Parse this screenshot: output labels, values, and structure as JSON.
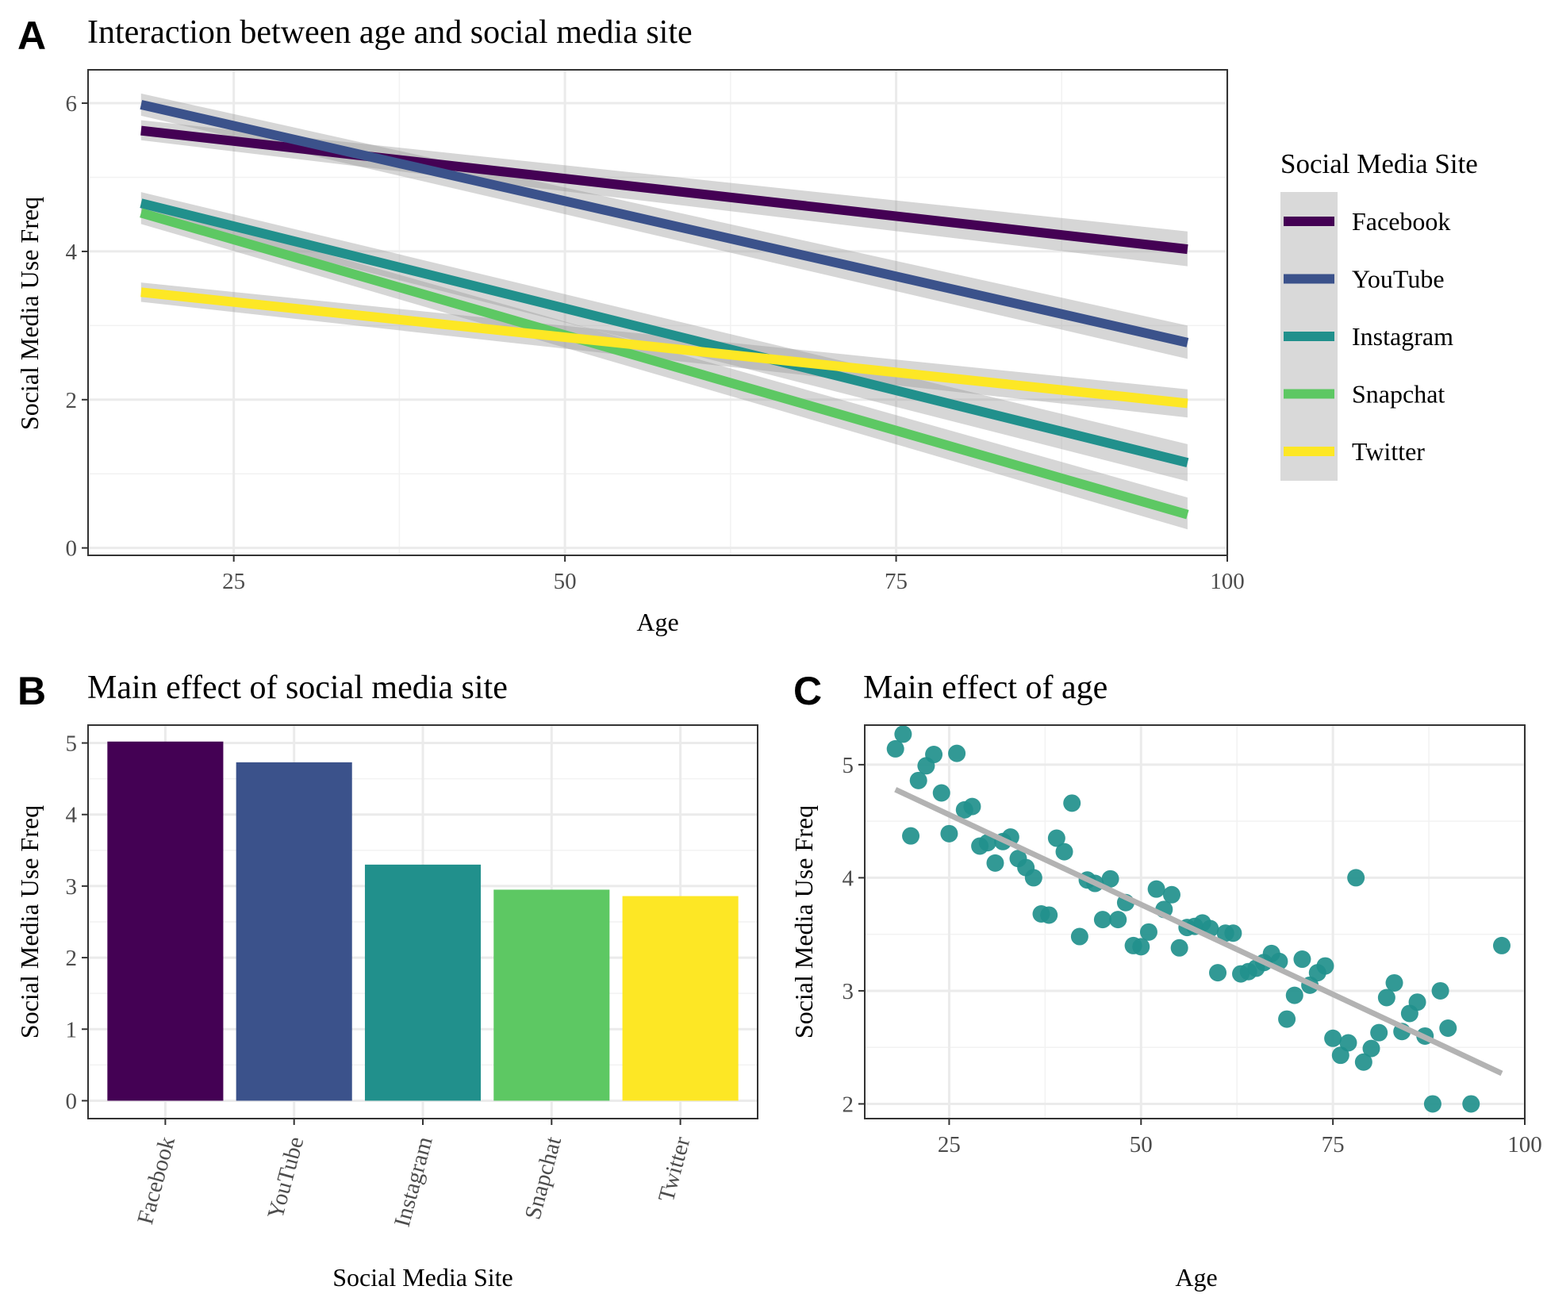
{
  "chart_data": [
    {
      "panel": "A",
      "type": "line",
      "title": "Interaction between age and social media site",
      "xlabel": "Age",
      "ylabel": "Social Media Use Freq",
      "xlim": [
        14,
        100
      ],
      "ylim": [
        -0.1,
        6.45
      ],
      "x_ticks": [
        25,
        50,
        75,
        100
      ],
      "y_ticks": [
        0,
        2,
        4,
        6
      ],
      "grid": true,
      "legend": {
        "title": "Social Media Site",
        "position": "right",
        "items": [
          "Facebook",
          "YouTube",
          "Instagram",
          "Snapchat",
          "Twitter"
        ]
      },
      "series": [
        {
          "name": "Facebook",
          "color": "#440154",
          "x": [
            18,
            97
          ],
          "y": [
            5.63,
            4.03
          ],
          "ci": [
            [
              5.5,
              5.77
            ],
            [
              3.8,
              4.27
            ]
          ]
        },
        {
          "name": "YouTube",
          "color": "#3b528b",
          "x": [
            18,
            97
          ],
          "y": [
            5.98,
            2.77
          ],
          "ci": [
            [
              5.83,
              6.13
            ],
            [
              2.55,
              3.0
            ]
          ]
        },
        {
          "name": "Instagram",
          "color": "#21908c",
          "x": [
            18,
            97
          ],
          "y": [
            4.65,
            1.15
          ],
          "ci": [
            [
              4.5,
              4.8
            ],
            [
              0.9,
              1.4
            ]
          ]
        },
        {
          "name": "Snapchat",
          "color": "#5dc863",
          "x": [
            18,
            97
          ],
          "y": [
            4.52,
            0.45
          ],
          "ci": [
            [
              4.37,
              4.67
            ],
            [
              0.25,
              0.68
            ]
          ]
        },
        {
          "name": "Twitter",
          "color": "#fde725",
          "x": [
            18,
            97
          ],
          "y": [
            3.45,
            1.95
          ],
          "ci": [
            [
              3.32,
              3.58
            ],
            [
              1.76,
              2.14
            ]
          ]
        }
      ]
    },
    {
      "panel": "B",
      "type": "bar",
      "title": "Main effect of social media site",
      "xlabel": "Social Media Site",
      "ylabel": "Social Media Use Freq",
      "ylim": [
        -0.25,
        5.25
      ],
      "y_ticks": [
        0,
        1,
        2,
        3,
        4,
        5
      ],
      "grid": true,
      "categories": [
        "Facebook",
        "YouTube",
        "Instagram",
        "Snapchat",
        "Twitter"
      ],
      "values": [
        5.02,
        4.73,
        3.3,
        2.95,
        2.86
      ],
      "colors": [
        "#440154",
        "#3b528b",
        "#21908c",
        "#5dc863",
        "#fde725"
      ]
    },
    {
      "panel": "C",
      "type": "scatter",
      "title": "Main effect of age",
      "xlabel": "Age",
      "ylabel": "Social Media Use Freq",
      "xlim": [
        14,
        100
      ],
      "ylim": [
        1.87,
        5.35
      ],
      "x_ticks": [
        25,
        50,
        75,
        100
      ],
      "y_ticks": [
        2,
        3,
        4,
        5
      ],
      "grid": true,
      "point_color": "#21908c",
      "trend_color": "#b3b3b3",
      "trend": {
        "x": [
          18,
          97
        ],
        "y": [
          4.78,
          2.27
        ]
      },
      "points": [
        [
          18,
          5.14
        ],
        [
          19,
          5.27
        ],
        [
          20,
          4.37
        ],
        [
          21,
          4.86
        ],
        [
          22,
          4.99
        ],
        [
          23,
          5.09
        ],
        [
          24,
          4.75
        ],
        [
          25,
          4.39
        ],
        [
          26,
          5.1
        ],
        [
          27,
          4.6
        ],
        [
          28,
          4.63
        ],
        [
          29,
          4.28
        ],
        [
          30,
          4.31
        ],
        [
          31,
          4.13
        ],
        [
          32,
          4.32
        ],
        [
          33,
          4.36
        ],
        [
          34,
          4.17
        ],
        [
          35,
          4.09
        ],
        [
          36,
          4.0
        ],
        [
          37,
          3.68
        ],
        [
          38,
          3.67
        ],
        [
          39,
          4.35
        ],
        [
          40,
          4.23
        ],
        [
          41,
          4.66
        ],
        [
          42,
          3.48
        ],
        [
          43,
          3.98
        ],
        [
          44,
          3.95
        ],
        [
          45,
          3.63
        ],
        [
          46,
          3.99
        ],
        [
          47,
          3.63
        ],
        [
          48,
          3.78
        ],
        [
          49,
          3.4
        ],
        [
          50,
          3.39
        ],
        [
          51,
          3.52
        ],
        [
          52,
          3.9
        ],
        [
          53,
          3.72
        ],
        [
          54,
          3.85
        ],
        [
          55,
          3.38
        ],
        [
          56,
          3.56
        ],
        [
          57,
          3.57
        ],
        [
          58,
          3.6
        ],
        [
          59,
          3.55
        ],
        [
          60,
          3.16
        ],
        [
          61,
          3.51
        ],
        [
          62,
          3.51
        ],
        [
          63,
          3.15
        ],
        [
          64,
          3.17
        ],
        [
          65,
          3.2
        ],
        [
          66,
          3.25
        ],
        [
          67,
          3.33
        ],
        [
          68,
          3.26
        ],
        [
          69,
          2.75
        ],
        [
          70,
          2.96
        ],
        [
          71,
          3.28
        ],
        [
          72,
          3.05
        ],
        [
          73,
          3.16
        ],
        [
          74,
          3.22
        ],
        [
          75,
          2.58
        ],
        [
          76,
          2.43
        ],
        [
          77,
          2.54
        ],
        [
          78,
          4.0
        ],
        [
          79,
          2.37
        ],
        [
          80,
          2.49
        ],
        [
          81,
          2.63
        ],
        [
          82,
          2.94
        ],
        [
          83,
          3.07
        ],
        [
          84,
          2.64
        ],
        [
          85,
          2.8
        ],
        [
          86,
          2.9
        ],
        [
          87,
          2.6
        ],
        [
          88,
          2.0
        ],
        [
          89,
          3.0
        ],
        [
          90,
          2.67
        ],
        [
          93,
          2.0
        ],
        [
          97,
          3.4
        ]
      ]
    }
  ]
}
